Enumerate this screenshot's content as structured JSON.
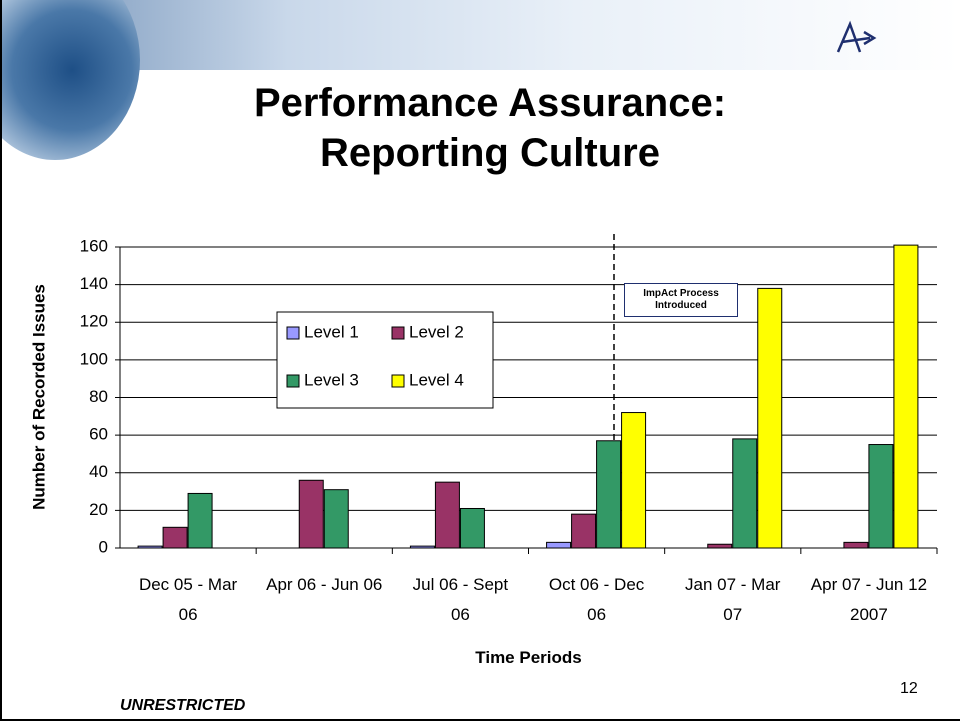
{
  "chart_data": {
    "type": "bar",
    "title": "Performance Assurance: Reporting Culture",
    "x_label": "Time Periods",
    "y_label": "Number of Recorded Issues",
    "annotation": "ImpAct Process Introduced",
    "footer": "UNRESTRICTED",
    "page_number": "12",
    "categories": [
      "Dec 05 - Mar 06",
      "Apr 06 - Jun 06",
      "Jul 06 - Sept 06",
      "Oct 06 - Dec 06",
      "Jan 07 - Mar 07",
      "Apr 07 - Jun 12 2007"
    ],
    "series": [
      {
        "name": "Level 1",
        "color": "#9999ff",
        "values": [
          1,
          0,
          1,
          3,
          0,
          0
        ]
      },
      {
        "name": "Level 2",
        "color": "#993366",
        "values": [
          11,
          36,
          35,
          18,
          2,
          3
        ]
      },
      {
        "name": "Level 3",
        "color": "#339966",
        "values": [
          29,
          31,
          21,
          57,
          58,
          55
        ]
      },
      {
        "name": "Level 4",
        "color": "#ffff00",
        "values": [
          0,
          0,
          0,
          72,
          138,
          161
        ]
      }
    ],
    "ylim": [
      0,
      160
    ],
    "yticks": [
      0,
      20,
      40,
      60,
      80,
      100,
      120,
      140,
      160
    ],
    "grid": true
  }
}
